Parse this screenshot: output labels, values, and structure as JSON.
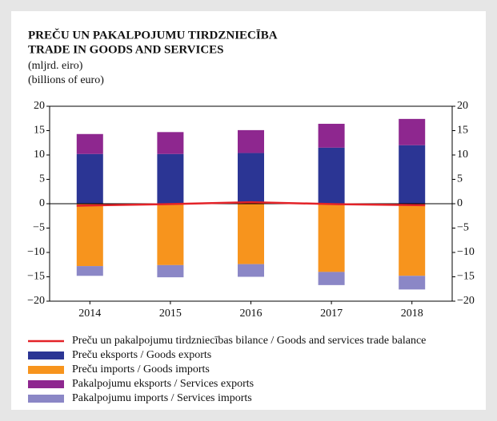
{
  "chart_data": {
    "type": "bar",
    "stacked": true,
    "title": [
      "PREČU UN PAKALPOJUMU TIRDZNIECĪBA",
      "TRADE IN GOODS AND SERVICES"
    ],
    "subtitle": [
      "(mljrd. eiro)",
      "(billions of euro)"
    ],
    "categories": [
      "2014",
      "2015",
      "2016",
      "2017",
      "2018"
    ],
    "series": [
      {
        "name": "Preču un pakalpojumu tirdzniecības bilance / Goods and services trade balance",
        "type": "line",
        "color": "#e32228",
        "values": [
          -0.4,
          -0.1,
          0.3,
          -0.1,
          -0.3
        ]
      },
      {
        "name": "Preču eksports / Goods exports",
        "type": "bar",
        "color": "#2b3594",
        "values": [
          10.2,
          10.2,
          10.4,
          11.5,
          12.0
        ]
      },
      {
        "name": "Preču imports / Goods imports",
        "type": "bar",
        "color": "#f7941d",
        "values": [
          -12.8,
          -12.6,
          -12.4,
          -14.0,
          -14.8
        ]
      },
      {
        "name": "Pakalpojumu eksports / Services exports",
        "type": "bar",
        "color": "#8e278f",
        "values": [
          4.1,
          4.5,
          4.7,
          4.9,
          5.4
        ]
      },
      {
        "name": "Pakalpojumu imports / Services imports",
        "type": "bar",
        "color": "#8b87c6",
        "values": [
          -2.0,
          -2.5,
          -2.6,
          -2.7,
          -2.8
        ]
      }
    ],
    "ylim": [
      -20,
      20
    ],
    "yticks": [
      20,
      15,
      10,
      5,
      0,
      {
        "value": -5,
        "label": "−5"
      },
      {
        "value": -10,
        "label": "−10"
      },
      {
        "value": -15,
        "label": "−15"
      },
      {
        "value": -20,
        "label": "−20"
      }
    ],
    "y2lim": [
      -20,
      20
    ],
    "y2ticks": [
      20,
      15,
      10,
      5,
      0,
      {
        "value": -5,
        "label": "−5"
      },
      {
        "value": -10,
        "label": "−10"
      },
      {
        "value": -15,
        "label": "−15"
      },
      {
        "value": -20,
        "label": "−20"
      }
    ]
  }
}
